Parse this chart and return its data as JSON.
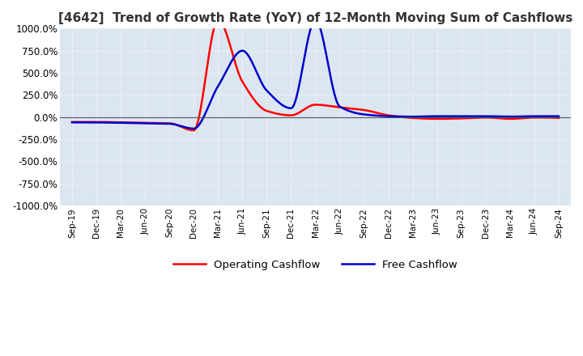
{
  "title": "[4642]  Trend of Growth Rate (YoY) of 12-Month Moving Sum of Cashflows",
  "title_fontsize": 11,
  "background_color": "#ffffff",
  "plot_background_color": "#dce6f0",
  "grid_color": "#ffffff",
  "ylim": [
    -1000,
    1000
  ],
  "yticks": [
    -1000,
    -750,
    -500,
    -250,
    0,
    250,
    500,
    750,
    1000
  ],
  "ytick_labels": [
    "-1000.0%",
    "-750.0%",
    "-500.0%",
    "-250.0%",
    "0.0%",
    "250.0%",
    "500.0%",
    "750.0%",
    "1000.0%"
  ],
  "x_labels": [
    "Sep-19",
    "Dec-19",
    "Mar-20",
    "Jun-20",
    "Sep-20",
    "Dec-20",
    "Mar-21",
    "Jun-21",
    "Sep-21",
    "Dec-21",
    "Mar-22",
    "Jun-22",
    "Sep-22",
    "Dec-22",
    "Mar-23",
    "Jun-23",
    "Sep-23",
    "Dec-23",
    "Mar-24",
    "Jun-24",
    "Sep-24"
  ],
  "operating_cashflow": [
    -55,
    -55,
    -60,
    -65,
    -70,
    -150,
    1100,
    400,
    70,
    20,
    140,
    110,
    80,
    20,
    -10,
    -20,
    -15,
    -5,
    -20,
    -5,
    -10
  ],
  "free_cashflow": [
    -60,
    -60,
    -65,
    -70,
    -75,
    -130,
    350,
    750,
    300,
    100,
    1100,
    120,
    30,
    10,
    5,
    10,
    10,
    10,
    5,
    10,
    10
  ],
  "op_color": "#ff0000",
  "free_color": "#0000cc",
  "legend_labels": [
    "Operating Cashflow",
    "Free Cashflow"
  ],
  "line_width": 1.8
}
